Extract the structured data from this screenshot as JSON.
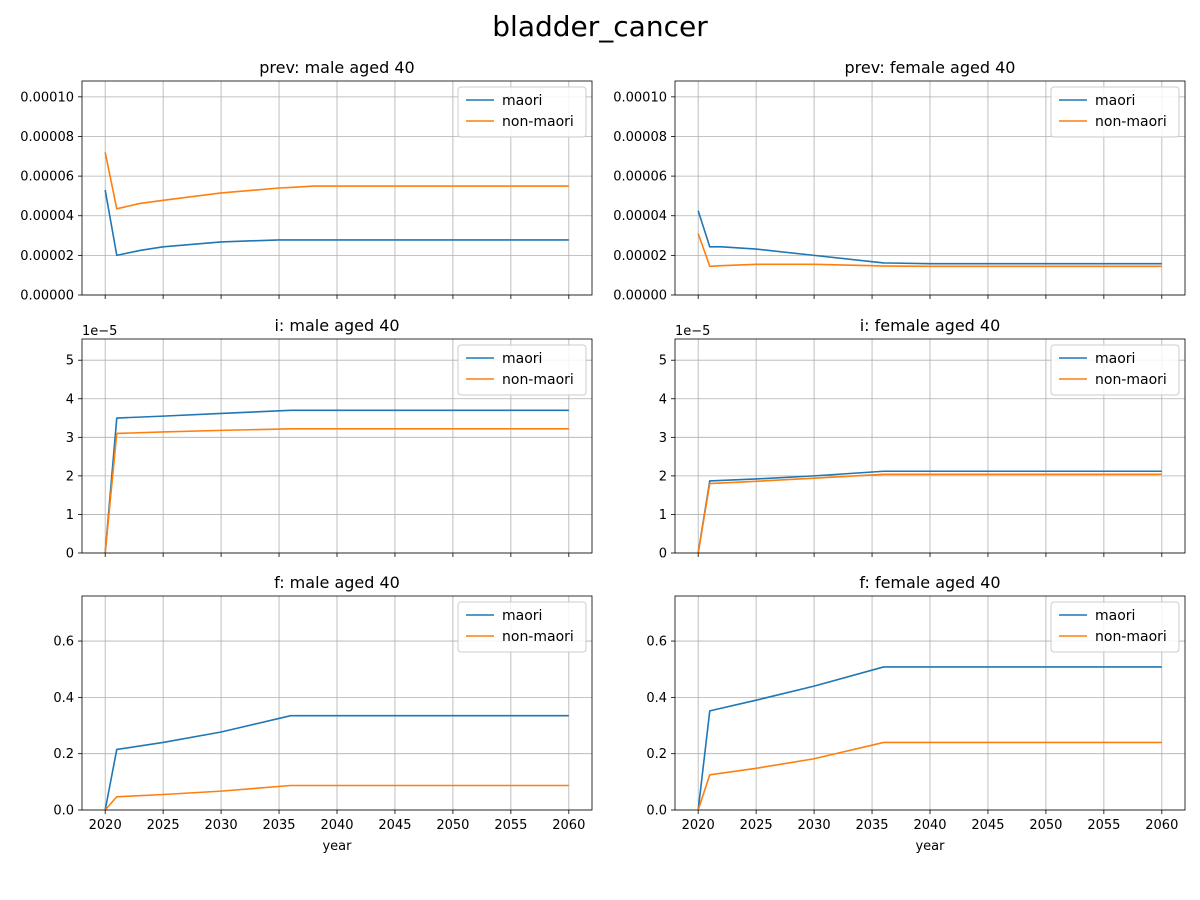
{
  "figure_title": "bladder_cancer",
  "colors": {
    "maori": "#1f77b4",
    "non_maori": "#ff7f0e",
    "grid": "#b0b0b0"
  },
  "chart_data": [
    {
      "type": "line",
      "title": "prev: male aged 40",
      "xlabel": "",
      "ylabel": "",
      "x": [
        2020,
        2021,
        2023,
        2025,
        2030,
        2035,
        2036,
        2038,
        2040,
        2060
      ],
      "series": [
        {
          "name": "maori",
          "values": [
            5.3e-05,
            2e-05,
            2.25e-05,
            2.43e-05,
            2.68e-05,
            2.78e-05,
            2.78e-05,
            2.78e-05,
            2.78e-05,
            2.78e-05
          ]
        },
        {
          "name": "non-maori",
          "values": [
            7.2e-05,
            4.35e-05,
            4.62e-05,
            4.78e-05,
            5.15e-05,
            5.4e-05,
            5.43e-05,
            5.5e-05,
            5.5e-05,
            5.5e-05
          ]
        }
      ],
      "xlim": [
        2018,
        2062
      ],
      "ylim": [
        0,
        0.000108
      ],
      "yticks": [
        0,
        2e-05,
        4e-05,
        6e-05,
        8e-05,
        0.0001
      ],
      "ytick_labels": [
        "0.00000",
        "0.00002",
        "0.00004",
        "0.00006",
        "0.00008",
        "0.00010"
      ],
      "offset_text": "",
      "show_xtick_labels": false,
      "legend": "top-right",
      "grid": true
    },
    {
      "type": "line",
      "title": "prev: female aged 40",
      "xlabel": "",
      "ylabel": "",
      "x": [
        2020,
        2021,
        2022,
        2025,
        2030,
        2035,
        2036,
        2040,
        2060
      ],
      "series": [
        {
          "name": "maori",
          "values": [
            4.25e-05,
            2.43e-05,
            2.43e-05,
            2.32e-05,
            2e-05,
            1.68e-05,
            1.62e-05,
            1.58e-05,
            1.58e-05
          ]
        },
        {
          "name": "non-maori",
          "values": [
            3.1e-05,
            1.45e-05,
            1.48e-05,
            1.55e-05,
            1.55e-05,
            1.48e-05,
            1.46e-05,
            1.45e-05,
            1.45e-05
          ]
        }
      ],
      "xlim": [
        2018,
        2062
      ],
      "ylim": [
        0,
        0.000108
      ],
      "yticks": [
        0,
        2e-05,
        4e-05,
        6e-05,
        8e-05,
        0.0001
      ],
      "ytick_labels": [
        "0.00000",
        "0.00002",
        "0.00004",
        "0.00006",
        "0.00008",
        "0.00010"
      ],
      "offset_text": "",
      "show_xtick_labels": false,
      "legend": "top-right",
      "grid": true
    },
    {
      "type": "line",
      "title": "i: male aged 40",
      "xlabel": "",
      "ylabel": "",
      "x": [
        2020,
        2021,
        2025,
        2030,
        2036,
        2060
      ],
      "series": [
        {
          "name": "maori",
          "values": [
            0,
            3.5,
            3.55,
            3.62,
            3.7,
            3.7
          ]
        },
        {
          "name": "non-maori",
          "values": [
            0,
            3.1,
            3.14,
            3.18,
            3.22,
            3.22
          ]
        }
      ],
      "xlim": [
        2018,
        2062
      ],
      "ylim": [
        0,
        5.55
      ],
      "yticks": [
        0,
        1,
        2,
        3,
        4,
        5
      ],
      "ytick_labels": [
        "0",
        "1",
        "2",
        "3",
        "4",
        "5"
      ],
      "offset_text": "1e−5",
      "show_xtick_labels": false,
      "legend": "top-right",
      "grid": true
    },
    {
      "type": "line",
      "title": "i: female aged 40",
      "xlabel": "",
      "ylabel": "",
      "x": [
        2020,
        2021,
        2025,
        2030,
        2036,
        2060
      ],
      "series": [
        {
          "name": "maori",
          "values": [
            0,
            1.87,
            1.92,
            2.0,
            2.12,
            2.12
          ]
        },
        {
          "name": "non-maori",
          "values": [
            0,
            1.8,
            1.86,
            1.94,
            2.04,
            2.04
          ]
        }
      ],
      "xlim": [
        2018,
        2062
      ],
      "ylim": [
        0,
        5.55
      ],
      "yticks": [
        0,
        1,
        2,
        3,
        4,
        5
      ],
      "ytick_labels": [
        "0",
        "1",
        "2",
        "3",
        "4",
        "5"
      ],
      "offset_text": "1e−5",
      "show_xtick_labels": false,
      "legend": "top-right",
      "grid": true
    },
    {
      "type": "line",
      "title": "f: male aged 40",
      "xlabel": "year",
      "ylabel": "",
      "x": [
        2020,
        2021,
        2025,
        2030,
        2036,
        2060
      ],
      "series": [
        {
          "name": "maori",
          "values": [
            0,
            0.215,
            0.24,
            0.277,
            0.335,
            0.335
          ]
        },
        {
          "name": "non-maori",
          "values": [
            0,
            0.047,
            0.055,
            0.067,
            0.087,
            0.087
          ]
        }
      ],
      "xlim": [
        2018,
        2062
      ],
      "ylim": [
        0,
        0.76
      ],
      "yticks": [
        0,
        0.2,
        0.4,
        0.6
      ],
      "ytick_labels": [
        "0.0",
        "0.2",
        "0.4",
        "0.6"
      ],
      "offset_text": "",
      "show_xtick_labels": true,
      "xticks": [
        2020,
        2025,
        2030,
        2035,
        2040,
        2045,
        2050,
        2055,
        2060
      ],
      "legend": "top-right",
      "grid": true
    },
    {
      "type": "line",
      "title": "f: female aged 40",
      "xlabel": "year",
      "ylabel": "",
      "x": [
        2020,
        2021,
        2025,
        2030,
        2036,
        2060
      ],
      "series": [
        {
          "name": "maori",
          "values": [
            0,
            0.352,
            0.39,
            0.44,
            0.508,
            0.508
          ]
        },
        {
          "name": "non-maori",
          "values": [
            0,
            0.125,
            0.148,
            0.182,
            0.24,
            0.24
          ]
        }
      ],
      "xlim": [
        2018,
        2062
      ],
      "ylim": [
        0,
        0.76
      ],
      "yticks": [
        0,
        0.2,
        0.4,
        0.6
      ],
      "ytick_labels": [
        "0.0",
        "0.2",
        "0.4",
        "0.6"
      ],
      "offset_text": "",
      "show_xtick_labels": true,
      "xticks": [
        2020,
        2025,
        2030,
        2035,
        2040,
        2045,
        2050,
        2055,
        2060
      ],
      "legend": "top-right",
      "grid": true
    }
  ]
}
